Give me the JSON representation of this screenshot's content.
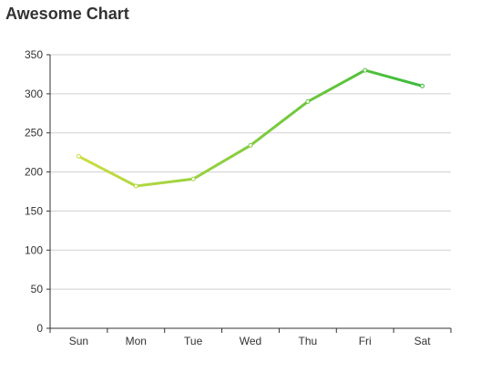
{
  "chart_data": {
    "type": "line",
    "title": "Awesome Chart",
    "categories": [
      "Sun",
      "Mon",
      "Tue",
      "Wed",
      "Thu",
      "Fri",
      "Sat"
    ],
    "series": [
      {
        "values": [
          220,
          182,
          191,
          234,
          290,
          330,
          310
        ]
      }
    ],
    "xlabel": "",
    "ylabel": "",
    "ylim": [
      0,
      350
    ],
    "yticks": [
      0,
      50,
      100,
      150,
      200,
      250,
      300,
      350
    ],
    "grid": true,
    "legend": "none",
    "colors": {
      "gradient_start": "#d8e043",
      "gradient_end": "#2eb83a",
      "grid": "#d0d0d0",
      "axis": "#333333",
      "text": "#333333"
    }
  }
}
